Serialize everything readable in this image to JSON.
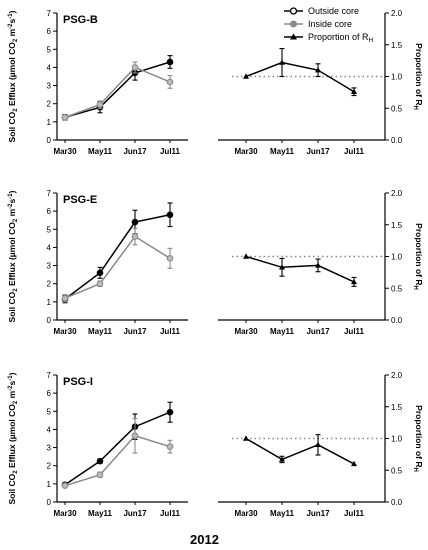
{
  "figure": {
    "year_label": "2012",
    "legend": {
      "outside": "Outside core",
      "inside": "Inside core",
      "proportion": "Proportion of R",
      "proportion_sub": "H"
    },
    "left_ylabel": {
      "base": "Soil CO",
      "sub2": "2",
      "mid": " Efflux (µmol CO",
      "sub2b": "2",
      "unit_m": " m",
      "sup_m": "-2",
      "unit_s": "s",
      "sup_s": "-1",
      "close": ")"
    },
    "right_ylabel": {
      "base": "Proportion of R",
      "sub": "H"
    }
  },
  "chart_data": [
    {
      "type": "line",
      "title": "PSG-B",
      "categories": [
        "Mar30",
        "May11",
        "Jun17",
        "Jul11"
      ],
      "ylim_left": [
        0,
        7
      ],
      "yticks_left": [
        "0",
        "1",
        "2",
        "3",
        "4",
        "5",
        "6",
        "7"
      ],
      "ylim_right": [
        0,
        2
      ],
      "yticks_right": [
        "0.0",
        "0.5",
        "1.0",
        "1.5",
        "2.0"
      ],
      "series": [
        {
          "name": "Outside core",
          "color": "#000000",
          "marker": "circle-filled",
          "values": [
            1.25,
            1.8,
            3.7,
            4.3
          ],
          "errors": [
            0.15,
            0.3,
            0.4,
            0.35
          ]
        },
        {
          "name": "Inside core",
          "color": "#8a8a8a",
          "marker": "circle-gray",
          "values": [
            1.25,
            1.95,
            4.0,
            3.2
          ],
          "errors": [
            0.12,
            0.2,
            0.3,
            0.35
          ]
        },
        {
          "name": "Proportion of RH",
          "color": "#000000",
          "marker": "triangle",
          "values": [
            1.0,
            1.22,
            1.1,
            0.76
          ],
          "errors": [
            0.0,
            0.22,
            0.1,
            0.06
          ]
        }
      ],
      "reference_line": 1.0
    },
    {
      "type": "line",
      "title": "PSG-E",
      "categories": [
        "Mar30",
        "May11",
        "Jun17",
        "Jul11"
      ],
      "ylim_left": [
        0,
        7
      ],
      "yticks_left": [
        "0",
        "1",
        "2",
        "3",
        "4",
        "5",
        "6",
        "7"
      ],
      "ylim_right": [
        0,
        2
      ],
      "yticks_right": [
        "0.0",
        "0.5",
        "1.0",
        "1.5",
        "2.0"
      ],
      "series": [
        {
          "name": "Outside core",
          "color": "#000000",
          "marker": "circle-filled",
          "values": [
            1.15,
            2.6,
            5.4,
            5.8
          ],
          "errors": [
            0.2,
            0.3,
            0.65,
            0.65
          ]
        },
        {
          "name": "Inside core",
          "color": "#8a8a8a",
          "marker": "circle-gray",
          "values": [
            1.2,
            2.0,
            4.6,
            3.4
          ],
          "errors": [
            0.2,
            0.15,
            0.45,
            0.55
          ]
        },
        {
          "name": "Proportion of RH",
          "color": "#000000",
          "marker": "triangle",
          "values": [
            1.0,
            0.83,
            0.86,
            0.6
          ],
          "errors": [
            0.0,
            0.14,
            0.1,
            0.07
          ]
        }
      ],
      "reference_line": 1.0
    },
    {
      "type": "line",
      "title": "PSG-I",
      "categories": [
        "Mar30",
        "May11",
        "Jun17",
        "Jul11"
      ],
      "ylim_left": [
        0,
        7
      ],
      "yticks_left": [
        "0",
        "1",
        "2",
        "3",
        "4",
        "5",
        "6",
        "7"
      ],
      "ylim_right": [
        0,
        2
      ],
      "yticks_right": [
        "0.0",
        "0.5",
        "1.0",
        "1.5",
        "2.0"
      ],
      "series": [
        {
          "name": "Outside core",
          "color": "#000000",
          "marker": "circle-filled",
          "values": [
            0.95,
            2.25,
            4.15,
            4.95
          ],
          "errors": [
            0.1,
            0.12,
            0.7,
            0.55
          ]
        },
        {
          "name": "Inside core",
          "color": "#8a8a8a",
          "marker": "circle-gray",
          "values": [
            0.9,
            1.5,
            3.65,
            3.05
          ],
          "errors": [
            0.1,
            0.15,
            0.95,
            0.35
          ]
        },
        {
          "name": "Proportion of RH",
          "color": "#000000",
          "marker": "triangle",
          "values": [
            1.0,
            0.67,
            0.9,
            0.6
          ],
          "errors": [
            0.0,
            0.05,
            0.16,
            0.0
          ]
        }
      ],
      "reference_line": 1.0
    }
  ]
}
